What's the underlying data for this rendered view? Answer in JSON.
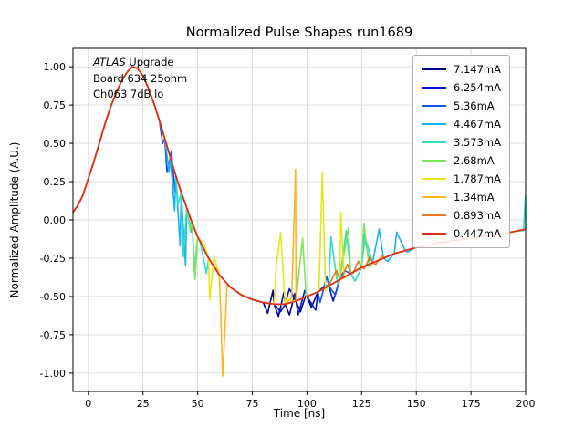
{
  "chart_data": {
    "type": "line",
    "title": "Normalized Pulse Shapes run1689",
    "xlabel": "Time [ns]",
    "ylabel": "Normalized Amplitude (A.U.)",
    "xlim": [
      -7,
      200
    ],
    "ylim": [
      -1.12,
      1.12
    ],
    "xticks": [
      0,
      25,
      50,
      75,
      100,
      125,
      150,
      175,
      200
    ],
    "yticks": [
      -1.0,
      -0.75,
      -0.5,
      -0.25,
      0.0,
      0.25,
      0.5,
      0.75,
      1.0
    ],
    "ytick_labels": [
      "-1.00",
      "-0.75",
      "-0.50",
      "-0.25",
      "0.00",
      "0.25",
      "0.50",
      "0.75",
      "1.00"
    ],
    "grid": true,
    "legend_position": "upper right",
    "annotation": {
      "line1_italic": "ATLAS",
      "line1_rest": " Upgrade",
      "line2": "Board 634 25ohm",
      "line3": "Ch063 7dB lo"
    },
    "base_pulse": [
      [
        -7,
        0.05
      ],
      [
        -5,
        0.09
      ],
      [
        -2.5,
        0.16
      ],
      [
        0,
        0.27
      ],
      [
        2.5,
        0.38
      ],
      [
        5,
        0.5
      ],
      [
        7.5,
        0.62
      ],
      [
        10,
        0.73
      ],
      [
        12.5,
        0.82
      ],
      [
        15,
        0.9
      ],
      [
        17.5,
        0.96
      ],
      [
        20,
        1.0
      ],
      [
        22.5,
        0.99
      ],
      [
        25,
        0.94
      ],
      [
        27.5,
        0.86
      ],
      [
        30,
        0.76
      ],
      [
        32.5,
        0.65
      ],
      [
        35,
        0.53
      ],
      [
        37.5,
        0.41
      ],
      [
        40,
        0.29
      ],
      [
        42.5,
        0.18
      ],
      [
        45,
        0.08
      ],
      [
        47.5,
        -0.02
      ],
      [
        50,
        -0.11
      ],
      [
        55,
        -0.25
      ],
      [
        60,
        -0.36
      ],
      [
        65,
        -0.44
      ],
      [
        70,
        -0.49
      ],
      [
        75,
        -0.52
      ],
      [
        80,
        -0.54
      ],
      [
        85,
        -0.55
      ],
      [
        90,
        -0.55
      ],
      [
        95,
        -0.53
      ],
      [
        100,
        -0.5
      ],
      [
        105,
        -0.47
      ],
      [
        110,
        -0.43
      ],
      [
        115,
        -0.39
      ],
      [
        120,
        -0.35
      ],
      [
        125,
        -0.31
      ],
      [
        130,
        -0.28
      ],
      [
        135,
        -0.25
      ],
      [
        140,
        -0.22
      ],
      [
        145,
        -0.2
      ],
      [
        150,
        -0.18
      ],
      [
        155,
        -0.165
      ],
      [
        160,
        -0.15
      ],
      [
        165,
        -0.14
      ],
      [
        170,
        -0.128
      ],
      [
        175,
        -0.118
      ],
      [
        180,
        -0.108
      ],
      [
        185,
        -0.098
      ],
      [
        190,
        -0.088
      ],
      [
        195,
        -0.075
      ],
      [
        200,
        -0.06
      ]
    ],
    "series": [
      {
        "name": "7.147mA",
        "color": "#00008c",
        "spikes": [
          [
            82,
            -0.61
          ],
          [
            84.5,
            -0.46
          ],
          [
            87,
            -0.63
          ],
          [
            89.5,
            -0.47
          ],
          [
            92,
            -0.62
          ],
          [
            94.5,
            -0.48
          ],
          [
            97,
            -0.6
          ],
          [
            99.5,
            -0.49
          ],
          [
            102,
            -0.57
          ]
        ]
      },
      {
        "name": "6.254mA",
        "color": "#0018cf",
        "spikes": [
          [
            88,
            -0.6
          ],
          [
            92,
            -0.45
          ],
          [
            96,
            -0.62
          ],
          [
            99,
            -0.46
          ],
          [
            104,
            -0.59
          ],
          [
            108,
            -0.43
          ],
          [
            112,
            -0.53
          ]
        ]
      },
      {
        "name": "5.36mA",
        "color": "#1453e8",
        "spikes": [
          [
            34,
            0.5
          ],
          [
            36,
            0.31
          ],
          [
            38,
            0.45
          ],
          [
            39.6,
            0.18
          ],
          [
            106,
            -0.54
          ],
          [
            109,
            -0.37
          ],
          [
            113,
            -0.49
          ],
          [
            117,
            -0.33
          ]
        ]
      },
      {
        "name": "4.467mA",
        "color": "#18b4f0",
        "spikes": [
          [
            37,
            0.31
          ],
          [
            39.5,
            0.06
          ],
          [
            42,
            -0.17
          ],
          [
            44.5,
            -0.3
          ],
          [
            47,
            -0.08
          ],
          [
            126,
            -0.09
          ],
          [
            129,
            -0.3
          ],
          [
            133,
            -0.06
          ],
          [
            137,
            -0.27
          ],
          [
            141,
            -0.08
          ],
          [
            146,
            -0.21
          ]
        ]
      },
      {
        "name": "3.573mA",
        "color": "#32dcc8",
        "spikes": [
          [
            41,
            0.1
          ],
          [
            43.5,
            -0.24
          ],
          [
            46,
            -0.02
          ],
          [
            48.5,
            -0.33
          ],
          [
            51,
            -0.13
          ],
          [
            54,
            -0.35
          ],
          [
            111,
            -0.11
          ],
          [
            114,
            -0.42
          ],
          [
            118,
            -0.07
          ],
          [
            122,
            -0.4
          ],
          [
            126.5,
            -0.11
          ],
          [
            199,
            -0.07
          ],
          [
            199.9,
            0.16
          ]
        ]
      },
      {
        "name": "2.68mA",
        "color": "#78e65a",
        "spikes": [
          [
            46.5,
            -0.07
          ],
          [
            48.8,
            -0.39
          ],
          [
            51.5,
            -0.15
          ],
          [
            98,
            -0.12
          ],
          [
            99.6,
            -0.49
          ],
          [
            119,
            -0.05
          ],
          [
            122.5,
            -0.33
          ],
          [
            126,
            -0.02
          ],
          [
            128.5,
            -0.31
          ]
        ]
      },
      {
        "name": "1.787mA",
        "color": "#e6e619",
        "spikes": [
          [
            53,
            -0.16
          ],
          [
            55.5,
            -0.52
          ],
          [
            57.5,
            -0.24
          ],
          [
            86,
            -0.3
          ],
          [
            88,
            -0.08
          ],
          [
            90.5,
            -0.52
          ],
          [
            105.5,
            -0.46
          ],
          [
            107,
            0.31
          ],
          [
            108.5,
            -0.46
          ],
          [
            115.5,
            0.05
          ],
          [
            117,
            -0.38
          ]
        ]
      },
      {
        "name": "1.34mA",
        "color": "#ffb41e",
        "spikes": [
          [
            59,
            -0.33
          ],
          [
            61.5,
            -1.02
          ],
          [
            63.5,
            -0.42
          ],
          [
            93,
            -0.51
          ],
          [
            94.8,
            0.33
          ],
          [
            96.5,
            -0.52
          ]
        ]
      },
      {
        "name": "0.893mA",
        "color": "#e6781e",
        "spikes": [
          [
            111,
            -0.4
          ],
          [
            113.5,
            -0.33
          ],
          [
            116,
            -0.38
          ],
          [
            118.5,
            -0.29
          ],
          [
            121,
            -0.35
          ],
          [
            123.5,
            -0.27
          ],
          [
            126.2,
            -0.32
          ],
          [
            128.8,
            -0.24
          ],
          [
            131.5,
            -0.29
          ],
          [
            134.5,
            -0.23
          ]
        ]
      },
      {
        "name": "0.447mA",
        "color": "#e62819",
        "spikes": []
      }
    ]
  }
}
